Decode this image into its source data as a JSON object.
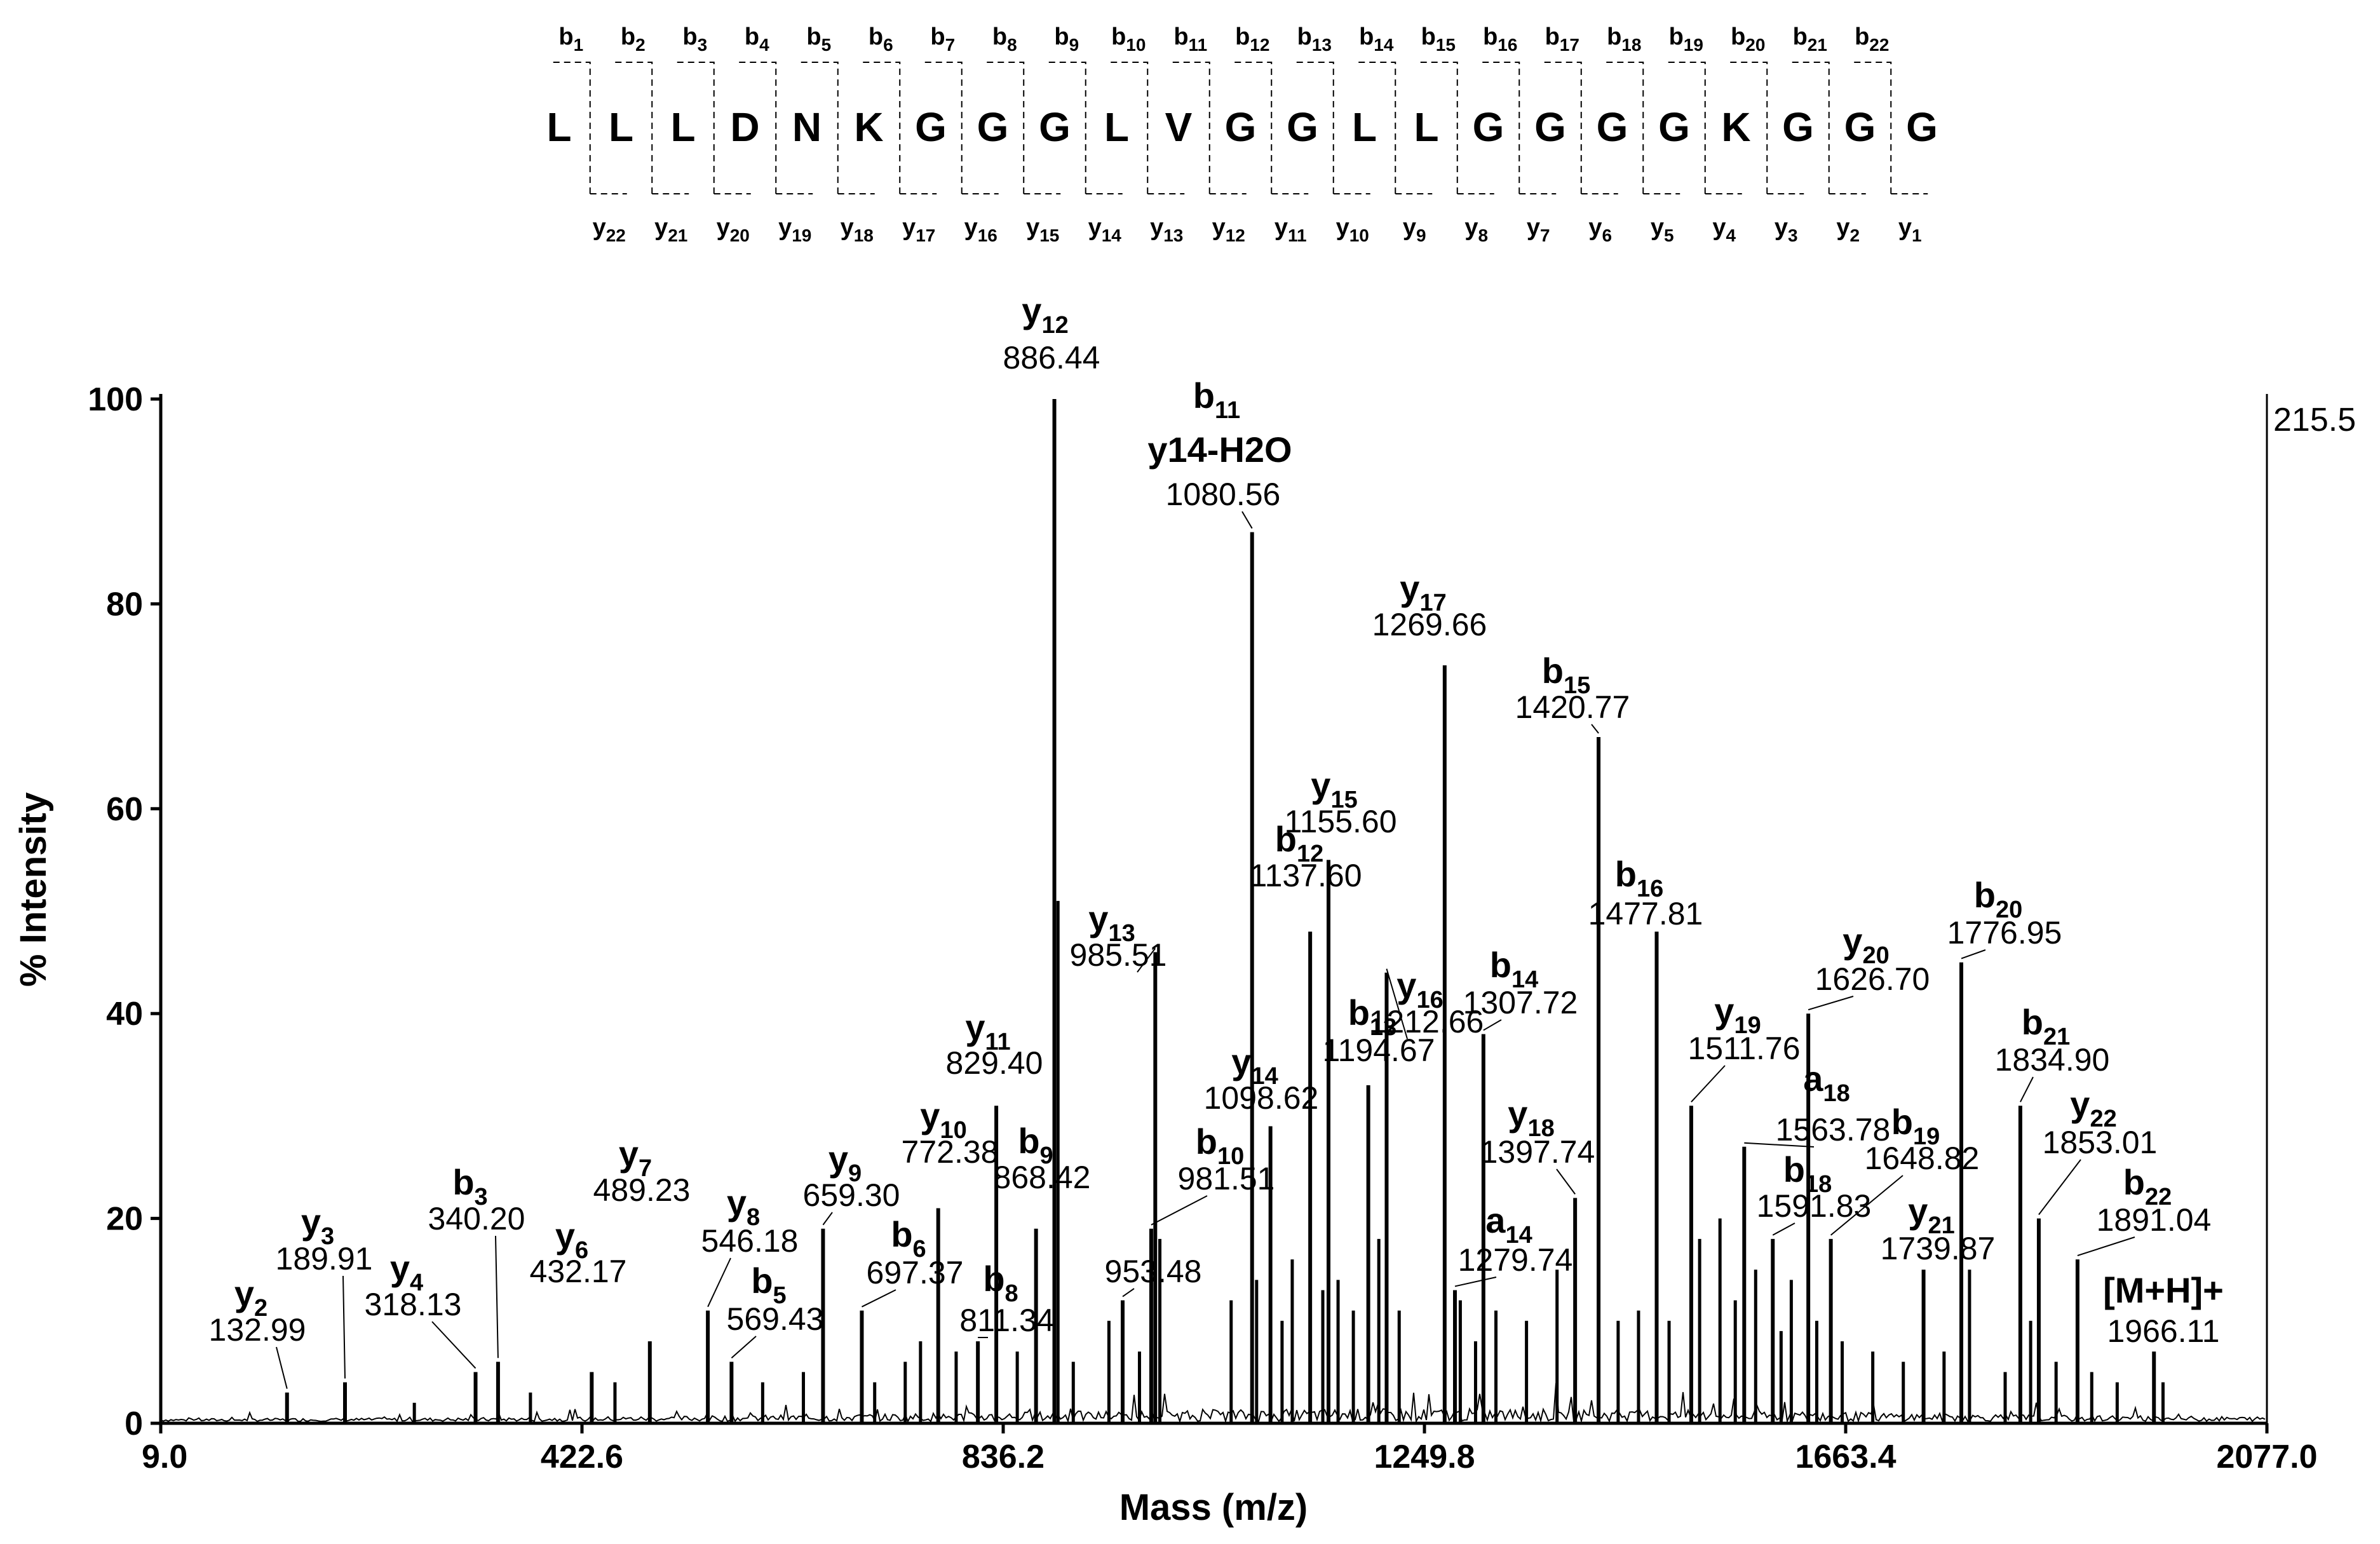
{
  "chart_data": {
    "type": "bar",
    "subtype": "mass_spectrum",
    "xlabel": "Mass (m/z)",
    "ylabel": "% Intensity",
    "xlim": [
      9.0,
      2077.0
    ],
    "ylim": [
      0,
      100
    ],
    "x_ticks": [
      "9.0",
      "422.6",
      "836.2",
      "1249.8",
      "1663.4",
      "2077.0"
    ],
    "y_ticks": [
      "0",
      "20",
      "40",
      "60",
      "80",
      "100"
    ],
    "max_intensity_label": "215.5",
    "peptide_sequence": [
      "L",
      "L",
      "L",
      "D",
      "N",
      "K",
      "G",
      "G",
      "G",
      "L",
      "V",
      "G",
      "G",
      "L",
      "L",
      "G",
      "G",
      "G",
      "G",
      "K",
      "G",
      "G",
      "G"
    ],
    "b_ions": [
      "1",
      "2",
      "3",
      "4",
      "5",
      "6",
      "7",
      "8",
      "9",
      "10",
      "11",
      "12",
      "13",
      "14",
      "15",
      "16",
      "17",
      "18",
      "19",
      "20",
      "21",
      "22"
    ],
    "y_ions": [
      "22",
      "21",
      "20",
      "19",
      "18",
      "17",
      "16",
      "15",
      "14",
      "13",
      "12",
      "11",
      "10",
      "9",
      "8",
      "7",
      "6",
      "5",
      "4",
      "3",
      "2",
      "1"
    ],
    "peaks": [
      {
        "ion": "y",
        "sub": "2",
        "suffix": "",
        "mz_label": "132.99",
        "x": 132.99,
        "y": 3
      },
      {
        "ion": "y",
        "sub": "3",
        "suffix": "",
        "mz_label": "189.91",
        "x": 189.91,
        "y": 4
      },
      {
        "ion": "y",
        "sub": "4",
        "suffix": "",
        "mz_label": "318.13",
        "x": 318.13,
        "y": 5
      },
      {
        "ion": "b",
        "sub": "3",
        "suffix": "",
        "mz_label": "340.20",
        "x": 340.2,
        "y": 6
      },
      {
        "ion": "y",
        "sub": "6",
        "suffix": "",
        "mz_label": "432.17",
        "x": 432.17,
        "y": 5
      },
      {
        "ion": "y",
        "sub": "7",
        "suffix": "",
        "mz_label": "489.23",
        "x": 489.23,
        "y": 8
      },
      {
        "ion": "y",
        "sub": "8",
        "suffix": "",
        "mz_label": "546.18",
        "x": 546.18,
        "y": 11
      },
      {
        "ion": "b",
        "sub": "5",
        "suffix": "",
        "mz_label": "569.43",
        "x": 569.43,
        "y": 6
      },
      {
        "ion": "y",
        "sub": "9",
        "suffix": "",
        "mz_label": "659.30",
        "x": 659.3,
        "y": 19
      },
      {
        "ion": "b",
        "sub": "6",
        "suffix": "",
        "mz_label": "697.37",
        "x": 697.37,
        "y": 11
      },
      {
        "ion": "y",
        "sub": "10",
        "suffix": "",
        "mz_label": "772.38",
        "x": 772.38,
        "y": 21
      },
      {
        "ion": "b",
        "sub": "8",
        "suffix": "",
        "mz_label": "811.34",
        "x": 811.34,
        "y": 8
      },
      {
        "ion": "y",
        "sub": "11",
        "suffix": "",
        "mz_label": "829.40",
        "x": 829.4,
        "y": 31
      },
      {
        "ion": "b",
        "sub": "9",
        "suffix": "",
        "mz_label": "868.42",
        "x": 868.42,
        "y": 19
      },
      {
        "ion": "y",
        "sub": "12",
        "suffix": "",
        "mz_label": "886.44",
        "x": 886.44,
        "y": 100
      },
      {
        "ion": "",
        "sub": "",
        "suffix": "",
        "mz_label": "953.48",
        "x": 953.48,
        "y": 12
      },
      {
        "ion": "b",
        "sub": "10",
        "suffix": "",
        "mz_label": "981.51",
        "x": 981.51,
        "y": 19
      },
      {
        "ion": "y",
        "sub": "13",
        "suffix": "",
        "mz_label": "985.51",
        "x": 985.51,
        "y": 46
      },
      {
        "ion": "b",
        "sub": "11",
        "suffix": "y14-H2O",
        "mz_label": "1080.56",
        "x": 1080.56,
        "y": 87
      },
      {
        "ion": "y",
        "sub": "14",
        "suffix": "",
        "mz_label": "1098.62",
        "x": 1098.62,
        "y": 29
      },
      {
        "ion": "b",
        "sub": "12",
        "suffix": "",
        "mz_label": "1137.60",
        "x": 1137.6,
        "y": 48
      },
      {
        "ion": "y",
        "sub": "15",
        "suffix": "",
        "mz_label": "1155.60",
        "x": 1155.6,
        "y": 55
      },
      {
        "ion": "b",
        "sub": "13",
        "suffix": "",
        "mz_label": "1194.67",
        "x": 1194.67,
        "y": 33
      },
      {
        "ion": "y",
        "sub": "16",
        "suffix": "",
        "mz_label": "1212.66",
        "x": 1212.66,
        "y": 44
      },
      {
        "ion": "y",
        "sub": "17",
        "suffix": "",
        "mz_label": "1269.66",
        "x": 1269.66,
        "y": 74
      },
      {
        "ion": "a",
        "sub": "14",
        "suffix": "",
        "mz_label": "1279.74",
        "x": 1279.74,
        "y": 13
      },
      {
        "ion": "b",
        "sub": "14",
        "suffix": "",
        "mz_label": "1307.72",
        "x": 1307.72,
        "y": 38
      },
      {
        "ion": "y",
        "sub": "18",
        "suffix": "",
        "mz_label": "1397.74",
        "x": 1397.74,
        "y": 22
      },
      {
        "ion": "b",
        "sub": "15",
        "suffix": "",
        "mz_label": "1420.77",
        "x": 1420.77,
        "y": 67
      },
      {
        "ion": "b",
        "sub": "16",
        "suffix": "",
        "mz_label": "1477.81",
        "x": 1477.81,
        "y": 48
      },
      {
        "ion": "y",
        "sub": "19",
        "suffix": "",
        "mz_label": "1511.76",
        "x": 1511.76,
        "y": 31
      },
      {
        "ion": "a",
        "sub": "18",
        "suffix": "",
        "mz_label": "1563.78",
        "x": 1563.78,
        "y": 27
      },
      {
        "ion": "b",
        "sub": "18",
        "suffix": "",
        "mz_label": "1591.83",
        "x": 1591.83,
        "y": 18
      },
      {
        "ion": "y",
        "sub": "20",
        "suffix": "",
        "mz_label": "1626.70",
        "x": 1626.7,
        "y": 40
      },
      {
        "ion": "b",
        "sub": "19",
        "suffix": "",
        "mz_label": "1648.82",
        "x": 1648.82,
        "y": 18
      },
      {
        "ion": "y",
        "sub": "21",
        "suffix": "",
        "mz_label": "1739.87",
        "x": 1739.87,
        "y": 15
      },
      {
        "ion": "b",
        "sub": "20",
        "suffix": "",
        "mz_label": "1776.95",
        "x": 1776.95,
        "y": 45
      },
      {
        "ion": "b",
        "sub": "21",
        "suffix": "",
        "mz_label": "1834.90",
        "x": 1834.9,
        "y": 31
      },
      {
        "ion": "y",
        "sub": "22",
        "suffix": "",
        "mz_label": "1853.01",
        "x": 1853.01,
        "y": 20
      },
      {
        "ion": "b",
        "sub": "22",
        "suffix": "",
        "mz_label": "1891.04",
        "x": 1891.04,
        "y": 16
      },
      {
        "ion": "[M+H]+",
        "sub": "",
        "suffix": "",
        "mz_label": "1966.11",
        "x": 1966.11,
        "y": 7
      }
    ],
    "minor_peaks": [
      {
        "x": 258,
        "y": 2
      },
      {
        "x": 372,
        "y": 3
      },
      {
        "x": 455,
        "y": 4
      },
      {
        "x": 600,
        "y": 4
      },
      {
        "x": 640,
        "y": 5
      },
      {
        "x": 710,
        "y": 4
      },
      {
        "x": 740,
        "y": 6
      },
      {
        "x": 755,
        "y": 8
      },
      {
        "x": 790,
        "y": 7
      },
      {
        "x": 850,
        "y": 7
      },
      {
        "x": 890,
        "y": 51
      },
      {
        "x": 905,
        "y": 6
      },
      {
        "x": 940,
        "y": 10
      },
      {
        "x": 970,
        "y": 7
      },
      {
        "x": 990,
        "y": 18
      },
      {
        "x": 1060,
        "y": 12
      },
      {
        "x": 1085,
        "y": 14
      },
      {
        "x": 1110,
        "y": 10
      },
      {
        "x": 1120,
        "y": 16
      },
      {
        "x": 1150,
        "y": 13
      },
      {
        "x": 1165,
        "y": 14
      },
      {
        "x": 1180,
        "y": 11
      },
      {
        "x": 1205,
        "y": 18
      },
      {
        "x": 1225,
        "y": 11
      },
      {
        "x": 1285,
        "y": 12
      },
      {
        "x": 1300,
        "y": 8
      },
      {
        "x": 1320,
        "y": 11
      },
      {
        "x": 1350,
        "y": 10
      },
      {
        "x": 1380,
        "y": 15
      },
      {
        "x": 1440,
        "y": 10
      },
      {
        "x": 1460,
        "y": 11
      },
      {
        "x": 1490,
        "y": 10
      },
      {
        "x": 1520,
        "y": 18
      },
      {
        "x": 1540,
        "y": 20
      },
      {
        "x": 1555,
        "y": 12
      },
      {
        "x": 1575,
        "y": 15
      },
      {
        "x": 1600,
        "y": 9
      },
      {
        "x": 1610,
        "y": 14
      },
      {
        "x": 1635,
        "y": 10
      },
      {
        "x": 1660,
        "y": 8
      },
      {
        "x": 1690,
        "y": 7
      },
      {
        "x": 1720,
        "y": 6
      },
      {
        "x": 1760,
        "y": 7
      },
      {
        "x": 1785,
        "y": 15
      },
      {
        "x": 1820,
        "y": 5
      },
      {
        "x": 1845,
        "y": 10
      },
      {
        "x": 1870,
        "y": 6
      },
      {
        "x": 1905,
        "y": 5
      },
      {
        "x": 1930,
        "y": 4
      },
      {
        "x": 1975,
        "y": 4
      }
    ]
  }
}
